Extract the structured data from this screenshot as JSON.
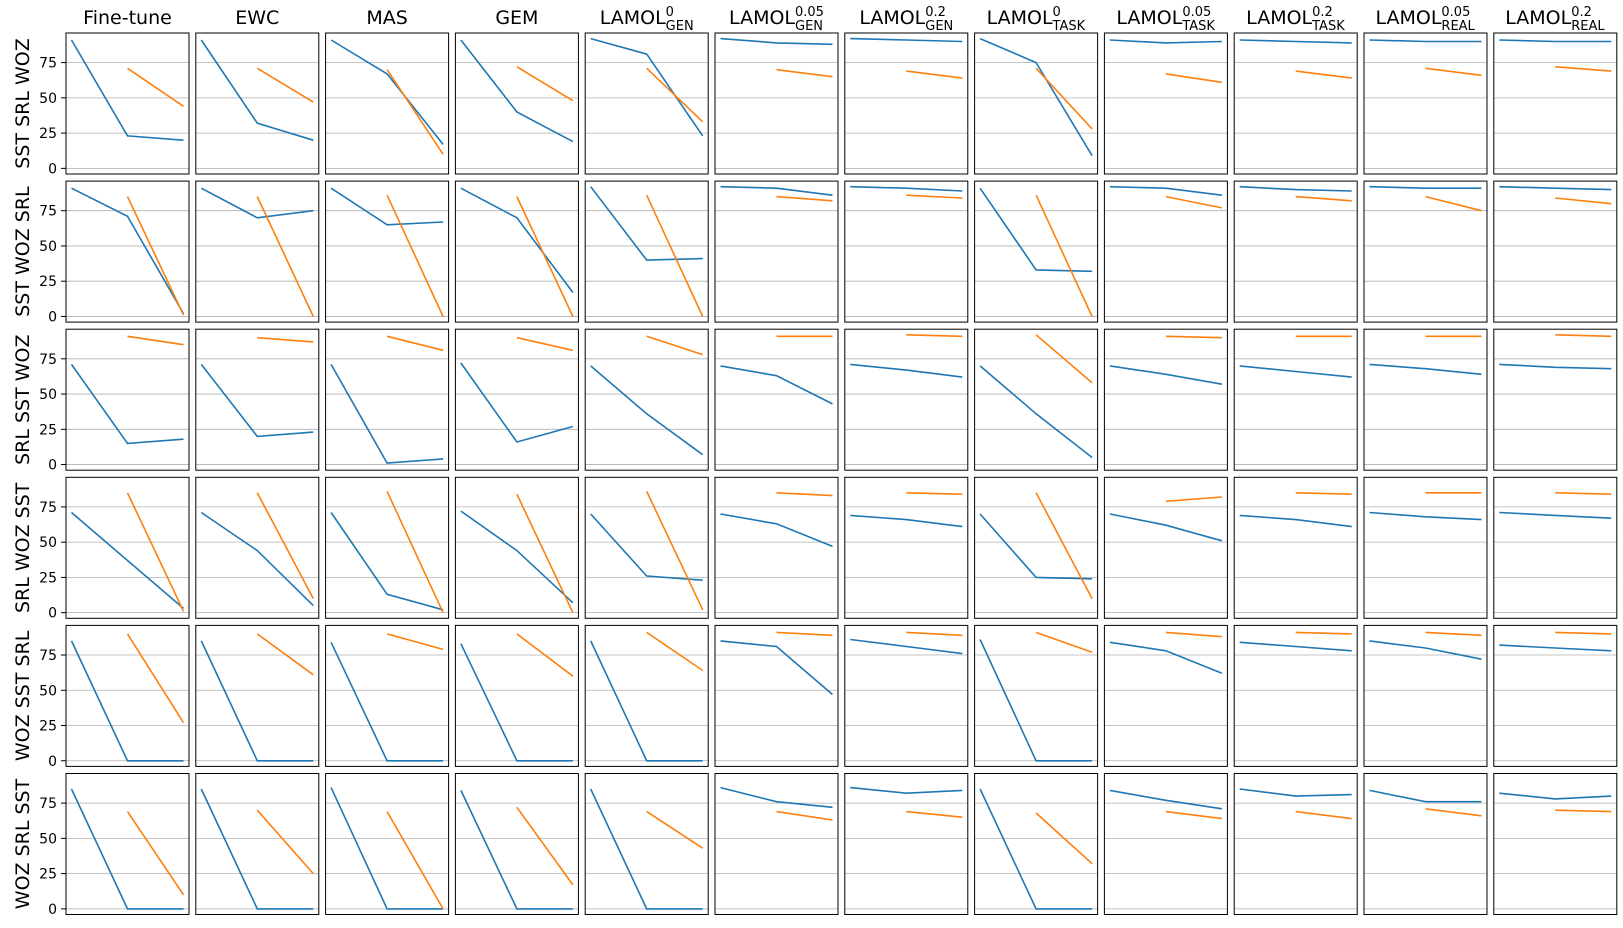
{
  "chart_data": {
    "type": "line",
    "layout": "grid",
    "ylim": [
      -4,
      96
    ],
    "yticks": [
      0,
      25,
      50,
      75
    ],
    "grid": "horizontal",
    "series_colors": {
      "blue": "#1f77b4",
      "orange": "#ff7f0e"
    },
    "columns": [
      {
        "main": "Fine-tune",
        "sup": "",
        "sub": ""
      },
      {
        "main": "EWC",
        "sup": "",
        "sub": ""
      },
      {
        "main": "MAS",
        "sup": "",
        "sub": ""
      },
      {
        "main": "GEM",
        "sup": "",
        "sub": ""
      },
      {
        "main": "LAMOL",
        "sup": "0",
        "sub": "GEN"
      },
      {
        "main": "LAMOL",
        "sup": "0.05",
        "sub": "GEN"
      },
      {
        "main": "LAMOL",
        "sup": "0.2",
        "sub": "GEN"
      },
      {
        "main": "LAMOL",
        "sup": "0",
        "sub": "TASK"
      },
      {
        "main": "LAMOL",
        "sup": "0.05",
        "sub": "TASK"
      },
      {
        "main": "LAMOL",
        "sup": "0.2",
        "sub": "TASK"
      },
      {
        "main": "LAMOL",
        "sup": "0.05",
        "sub": "REAL"
      },
      {
        "main": "LAMOL",
        "sup": "0.2",
        "sub": "REAL"
      }
    ],
    "rows": [
      {
        "label": "SST SRL WOZ",
        "panels": [
          {
            "blue": [
              91,
              23,
              20
            ],
            "orange": [
              71,
              44
            ]
          },
          {
            "blue": [
              91,
              32,
              20
            ],
            "orange": [
              71,
              47
            ]
          },
          {
            "blue": [
              91,
              67,
              17
            ],
            "orange": [
              70,
              10
            ]
          },
          {
            "blue": [
              91,
              40,
              19
            ],
            "orange": [
              72,
              48
            ]
          },
          {
            "blue": [
              92,
              81,
              23
            ],
            "orange": [
              71,
              33
            ]
          },
          {
            "blue": [
              92,
              89,
              88
            ],
            "orange": [
              70,
              65
            ]
          },
          {
            "blue": [
              92,
              91,
              90
            ],
            "orange": [
              69,
              64
            ]
          },
          {
            "blue": [
              92,
              75,
              9
            ],
            "orange": [
              71,
              28
            ]
          },
          {
            "blue": [
              91,
              89,
              90
            ],
            "orange": [
              67,
              61
            ]
          },
          {
            "blue": [
              91,
              90,
              89
            ],
            "orange": [
              69,
              64
            ]
          },
          {
            "blue": [
              91,
              90,
              90
            ],
            "orange": [
              71,
              66
            ]
          },
          {
            "blue": [
              91,
              90,
              90
            ],
            "orange": [
              72,
              69
            ]
          }
        ]
      },
      {
        "label": "SST WOZ SRL",
        "panels": [
          {
            "blue": [
              91,
              71,
              2
            ],
            "orange": [
              85,
              1
            ]
          },
          {
            "blue": [
              91,
              70,
              75
            ],
            "orange": [
              85,
              0
            ]
          },
          {
            "blue": [
              91,
              65,
              67
            ],
            "orange": [
              86,
              0
            ]
          },
          {
            "blue": [
              91,
              70,
              17
            ],
            "orange": [
              85,
              0
            ]
          },
          {
            "blue": [
              92,
              40,
              41
            ],
            "orange": [
              86,
              0
            ]
          },
          {
            "blue": [
              92,
              91,
              86
            ],
            "orange": [
              85,
              82
            ]
          },
          {
            "blue": [
              92,
              91,
              89
            ],
            "orange": [
              86,
              84
            ]
          },
          {
            "blue": [
              91,
              33,
              32
            ],
            "orange": [
              86,
              0
            ]
          },
          {
            "blue": [
              92,
              91,
              86
            ],
            "orange": [
              85,
              77
            ]
          },
          {
            "blue": [
              92,
              90,
              89
            ],
            "orange": [
              85,
              82
            ]
          },
          {
            "blue": [
              92,
              91,
              91
            ],
            "orange": [
              85,
              75
            ]
          },
          {
            "blue": [
              92,
              91,
              90
            ],
            "orange": [
              84,
              80
            ]
          }
        ]
      },
      {
        "label": "SRL SST WOZ",
        "panels": [
          {
            "blue": [
              71,
              15,
              18
            ],
            "orange": [
              91,
              85
            ]
          },
          {
            "blue": [
              71,
              20,
              23
            ],
            "orange": [
              90,
              87
            ]
          },
          {
            "blue": [
              71,
              1,
              4
            ],
            "orange": [
              91,
              81
            ]
          },
          {
            "blue": [
              72,
              16,
              27
            ],
            "orange": [
              90,
              81
            ]
          },
          {
            "blue": [
              70,
              36,
              7
            ],
            "orange": [
              91,
              78
            ]
          },
          {
            "blue": [
              70,
              63,
              43
            ],
            "orange": [
              91,
              91
            ]
          },
          {
            "blue": [
              71,
              67,
              62
            ],
            "orange": [
              92,
              91
            ]
          },
          {
            "blue": [
              70,
              36,
              5
            ],
            "orange": [
              92,
              58
            ]
          },
          {
            "blue": [
              70,
              64,
              57
            ],
            "orange": [
              91,
              90
            ]
          },
          {
            "blue": [
              70,
              66,
              62
            ],
            "orange": [
              91,
              91
            ]
          },
          {
            "blue": [
              71,
              68,
              64
            ],
            "orange": [
              91,
              91
            ]
          },
          {
            "blue": [
              71,
              69,
              68
            ],
            "orange": [
              92,
              91
            ]
          }
        ]
      },
      {
        "label": "SRL WOZ SST",
        "panels": [
          {
            "blue": [
              71,
              37,
              3
            ],
            "orange": [
              85,
              1
            ]
          },
          {
            "blue": [
              71,
              44,
              5
            ],
            "orange": [
              85,
              10
            ]
          },
          {
            "blue": [
              71,
              13,
              2
            ],
            "orange": [
              86,
              0
            ]
          },
          {
            "blue": [
              72,
              44,
              7
            ],
            "orange": [
              84,
              0
            ]
          },
          {
            "blue": [
              70,
              26,
              23
            ],
            "orange": [
              86,
              2
            ]
          },
          {
            "blue": [
              70,
              63,
              47
            ],
            "orange": [
              85,
              83
            ]
          },
          {
            "blue": [
              69,
              66,
              61
            ],
            "orange": [
              85,
              84
            ]
          },
          {
            "blue": [
              70,
              25,
              24
            ],
            "orange": [
              85,
              10
            ]
          },
          {
            "blue": [
              70,
              62,
              51
            ],
            "orange": [
              79,
              82
            ]
          },
          {
            "blue": [
              69,
              66,
              61
            ],
            "orange": [
              85,
              84
            ]
          },
          {
            "blue": [
              71,
              68,
              66
            ],
            "orange": [
              85,
              85
            ]
          },
          {
            "blue": [
              71,
              69,
              67
            ],
            "orange": [
              85,
              84
            ]
          }
        ]
      },
      {
        "label": "WOZ SST SRL",
        "panels": [
          {
            "blue": [
              85,
              0,
              0
            ],
            "orange": [
              90,
              27
            ]
          },
          {
            "blue": [
              85,
              0,
              0
            ],
            "orange": [
              90,
              61
            ]
          },
          {
            "blue": [
              84,
              0,
              0
            ],
            "orange": [
              90,
              79
            ]
          },
          {
            "blue": [
              83,
              0,
              0
            ],
            "orange": [
              90,
              60
            ]
          },
          {
            "blue": [
              85,
              0,
              0
            ],
            "orange": [
              91,
              64
            ]
          },
          {
            "blue": [
              85,
              81,
              47
            ],
            "orange": [
              91,
              89
            ]
          },
          {
            "blue": [
              86,
              81,
              76
            ],
            "orange": [
              91,
              89
            ]
          },
          {
            "blue": [
              86,
              0,
              0
            ],
            "orange": [
              91,
              77
            ]
          },
          {
            "blue": [
              84,
              78,
              62
            ],
            "orange": [
              91,
              88
            ]
          },
          {
            "blue": [
              84,
              81,
              78
            ],
            "orange": [
              91,
              90
            ]
          },
          {
            "blue": [
              85,
              80,
              72
            ],
            "orange": [
              91,
              89
            ]
          },
          {
            "blue": [
              82,
              80,
              78
            ],
            "orange": [
              91,
              90
            ]
          }
        ]
      },
      {
        "label": "WOZ SRL SST",
        "panels": [
          {
            "blue": [
              85,
              0,
              0
            ],
            "orange": [
              69,
              10
            ]
          },
          {
            "blue": [
              85,
              0,
              0
            ],
            "orange": [
              70,
              25
            ]
          },
          {
            "blue": [
              86,
              0,
              0
            ],
            "orange": [
              69,
              0
            ]
          },
          {
            "blue": [
              84,
              0,
              0
            ],
            "orange": [
              72,
              17
            ]
          },
          {
            "blue": [
              85,
              0,
              0
            ],
            "orange": [
              69,
              43
            ]
          },
          {
            "blue": [
              86,
              76,
              72
            ],
            "orange": [
              69,
              63
            ]
          },
          {
            "blue": [
              86,
              82,
              84
            ],
            "orange": [
              69,
              65
            ]
          },
          {
            "blue": [
              85,
              0,
              0
            ],
            "orange": [
              68,
              32
            ]
          },
          {
            "blue": [
              84,
              77,
              71
            ],
            "orange": [
              69,
              64
            ]
          },
          {
            "blue": [
              85,
              80,
              81
            ],
            "orange": [
              69,
              64
            ]
          },
          {
            "blue": [
              84,
              76,
              76
            ],
            "orange": [
              71,
              66
            ]
          },
          {
            "blue": [
              82,
              78,
              80
            ],
            "orange": [
              70,
              69
            ]
          }
        ]
      }
    ]
  }
}
